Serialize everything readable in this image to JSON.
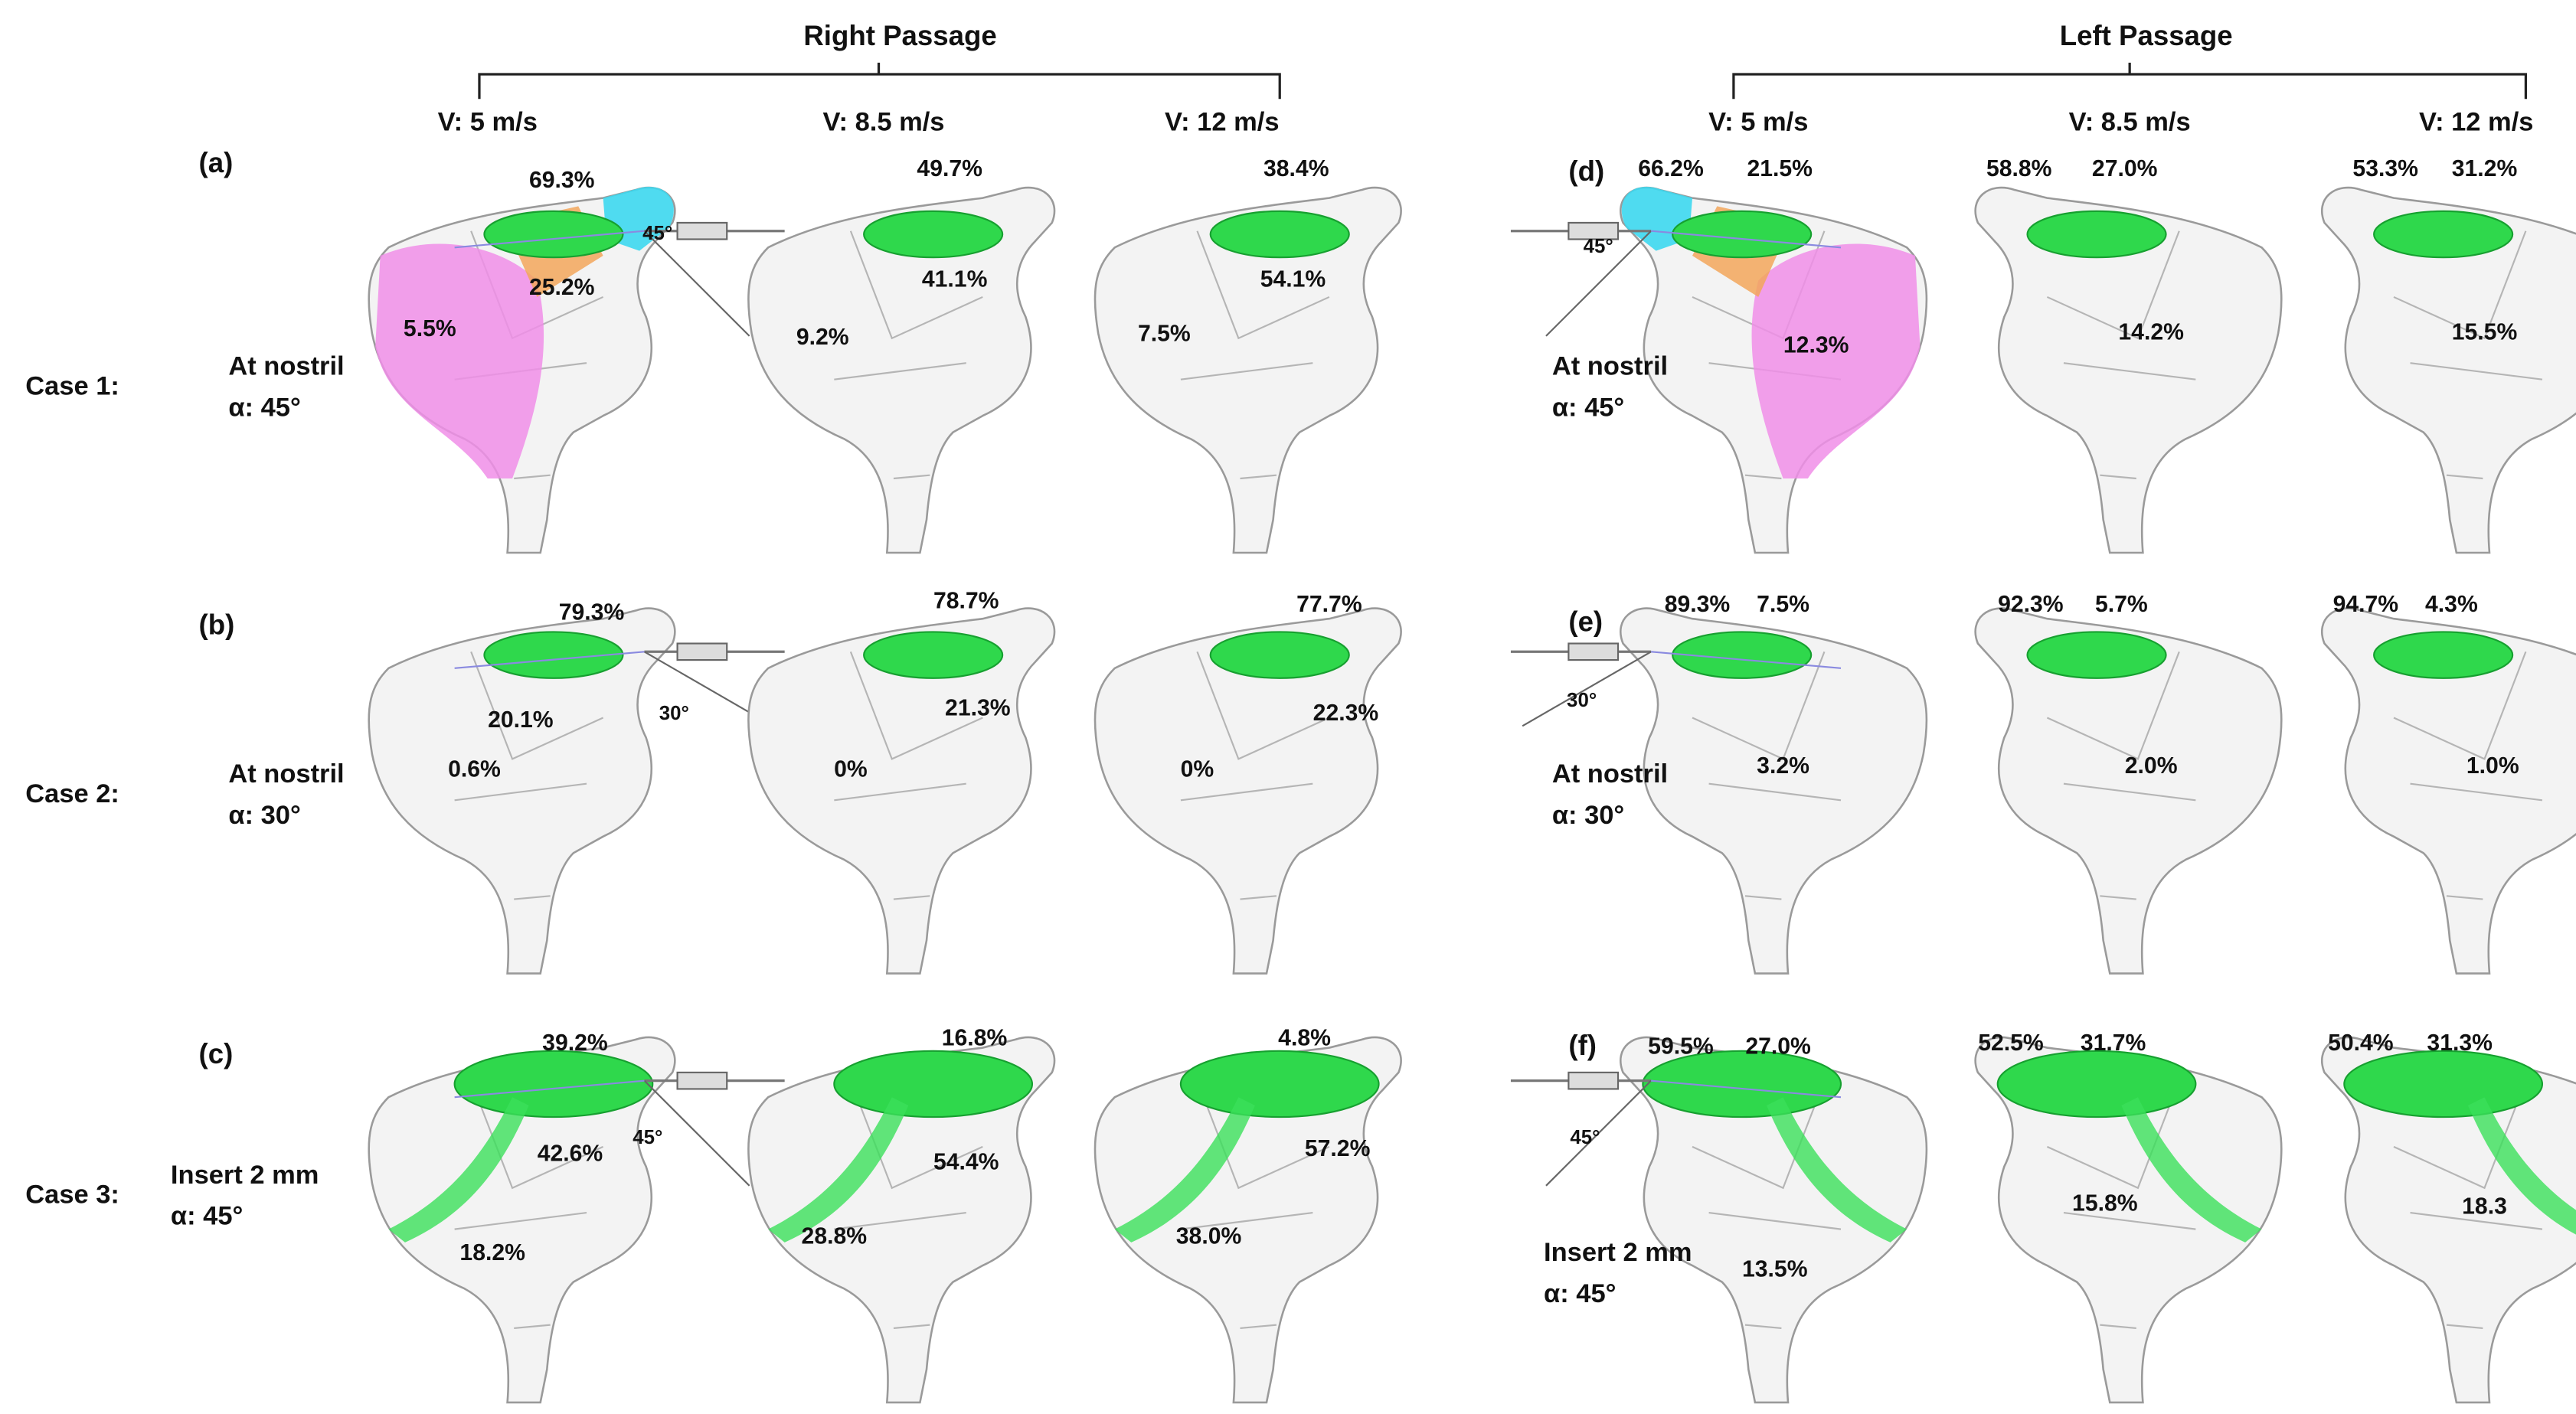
{
  "header": {
    "right": "Right Passage",
    "left": "Left Passage"
  },
  "velocities": {
    "right": [
      "V: 5 m/s",
      "V: 8.5 m/s",
      "V: 12 m/s"
    ],
    "left": [
      "V: 5 m/s",
      "V: 8.5 m/s",
      "V: 12 m/s"
    ]
  },
  "cases": [
    "Case 1:",
    "Case 2:",
    "Case 3:"
  ],
  "panels": [
    {
      "label": "(a)",
      "condition": [
        "At nostril",
        "α: 45°"
      ],
      "angle": "45°",
      "models": [
        [
          "69.3%",
          "25.2%",
          "5.5%"
        ],
        [
          "49.7%",
          "41.1%",
          "9.2%"
        ],
        [
          "38.4%",
          "54.1%",
          "7.5%"
        ]
      ]
    },
    {
      "label": "(b)",
      "condition": [
        "At nostril",
        "α: 30°"
      ],
      "angle": "30°",
      "models": [
        [
          "79.3%",
          "20.1%",
          "0.6%"
        ],
        [
          "78.7%",
          "21.3%",
          "0%"
        ],
        [
          "77.7%",
          "22.3%",
          "0%"
        ]
      ]
    },
    {
      "label": "(c)",
      "condition": [
        "Insert 2 mm",
        "α: 45°"
      ],
      "angle": "45°",
      "models": [
        [
          "39.2%",
          "42.6%",
          "18.2%"
        ],
        [
          "16.8%",
          "54.4%",
          "28.8%"
        ],
        [
          "4.8%",
          "57.2%",
          "38.0%"
        ]
      ]
    },
    {
      "label": "(d)",
      "condition": [
        "At nostril",
        "α: 45°"
      ],
      "angle": "45°",
      "models": [
        [
          "66.2%",
          "21.5%",
          "12.3%"
        ],
        [
          "58.8%",
          "27.0%",
          "14.2%"
        ],
        [
          "53.3%",
          "31.2%",
          "15.5%"
        ]
      ]
    },
    {
      "label": "(e)",
      "condition": [
        "At nostril",
        "α: 30°"
      ],
      "angle": "30°",
      "models": [
        [
          "89.3%",
          "7.5%",
          "3.2%"
        ],
        [
          "92.3%",
          "5.7%",
          "2.0%"
        ],
        [
          "94.7%",
          "4.3%",
          "1.0%"
        ]
      ]
    },
    {
      "label": "(f)",
      "condition": [
        "Insert 2 mm",
        "α: 45°"
      ],
      "angle": "45°",
      "models": [
        [
          "59.5%",
          "27.0%",
          "13.5%"
        ],
        [
          "52.5%",
          "31.7%",
          "15.8%"
        ],
        [
          "50.4%",
          "31.3%",
          "18.3"
        ]
      ]
    }
  ]
}
